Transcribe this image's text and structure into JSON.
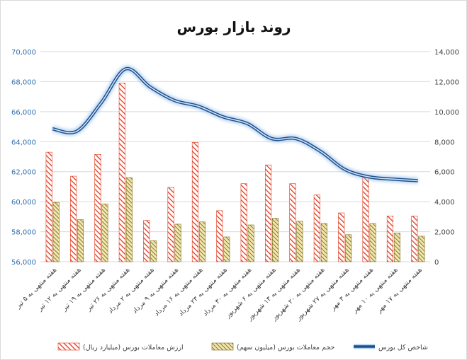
{
  "chart_data": {
    "type": "bar",
    "title": "روند بازار بورس",
    "categories": [
      "هفته منتهی به ۵ تیر",
      "هفته منتهی به ۱۲ تیر",
      "هفته منتهی به ۱۹ تیر",
      "هفته منتهی به ۲۶ تیر",
      "هفته منتهی به ۲ مرداد",
      "هفته منتهی به ۹ مرداد",
      "هفته منتهی به ۱۶ مرداد",
      "هفته منتهی به ۲۳ مرداد",
      "هفته منتهی به ۳۰ مرداد",
      "هفته منتهی به ۶ شهریور",
      "هفته منتهی به ۱۳ شهریور",
      "هفته منتهی به ۲۰ شهریور",
      "هفته منتهی به ۲۷ شهریور",
      "هفته منتهی به ۳ مهر",
      "هفته منتهی به ۱۰ مهر",
      "هفته منتهی به ۱۷ مهر"
    ],
    "left_axis": {
      "min": 56000,
      "max": 70000,
      "step": 2000,
      "ticks": [
        "56,000",
        "58,000",
        "60,000",
        "62,000",
        "64,000",
        "66,000",
        "68,000",
        "70,000"
      ]
    },
    "right_axis": {
      "min": 0,
      "max": 14000,
      "step": 2000,
      "ticks": [
        "0",
        "2,000",
        "4,000",
        "6,000",
        "8,000",
        "10,000",
        "12,000",
        "14,000"
      ]
    },
    "series": [
      {
        "name": "ارزش معاملات بورس (میلیارد ریال)",
        "kind": "bar",
        "axis": "right",
        "pattern": "red-diagonal",
        "values": [
          7300,
          5700,
          7150,
          11900,
          2750,
          4950,
          7950,
          3400,
          5200,
          6450,
          5200,
          4450,
          3250,
          5700,
          3050,
          3050
        ]
      },
      {
        "name": "حجم معاملات بورس (میلیون سهم)",
        "kind": "bar",
        "axis": "right",
        "pattern": "gold-diagonal",
        "values": [
          3950,
          2800,
          3850,
          5600,
          1400,
          2500,
          2650,
          1650,
          2450,
          2900,
          2700,
          2550,
          1800,
          2550,
          1900,
          1700
        ]
      },
      {
        "name": "شاخص کل بورس",
        "kind": "line",
        "axis": "right",
        "color": "#1f4e8c",
        "values": [
          8850,
          8700,
          10600,
          12850,
          11650,
          10750,
          10350,
          9650,
          9200,
          8200,
          8200,
          7350,
          6150,
          5650,
          5500,
          5400
        ]
      }
    ],
    "legend_position": "bottom",
    "grid": "horizontal"
  }
}
